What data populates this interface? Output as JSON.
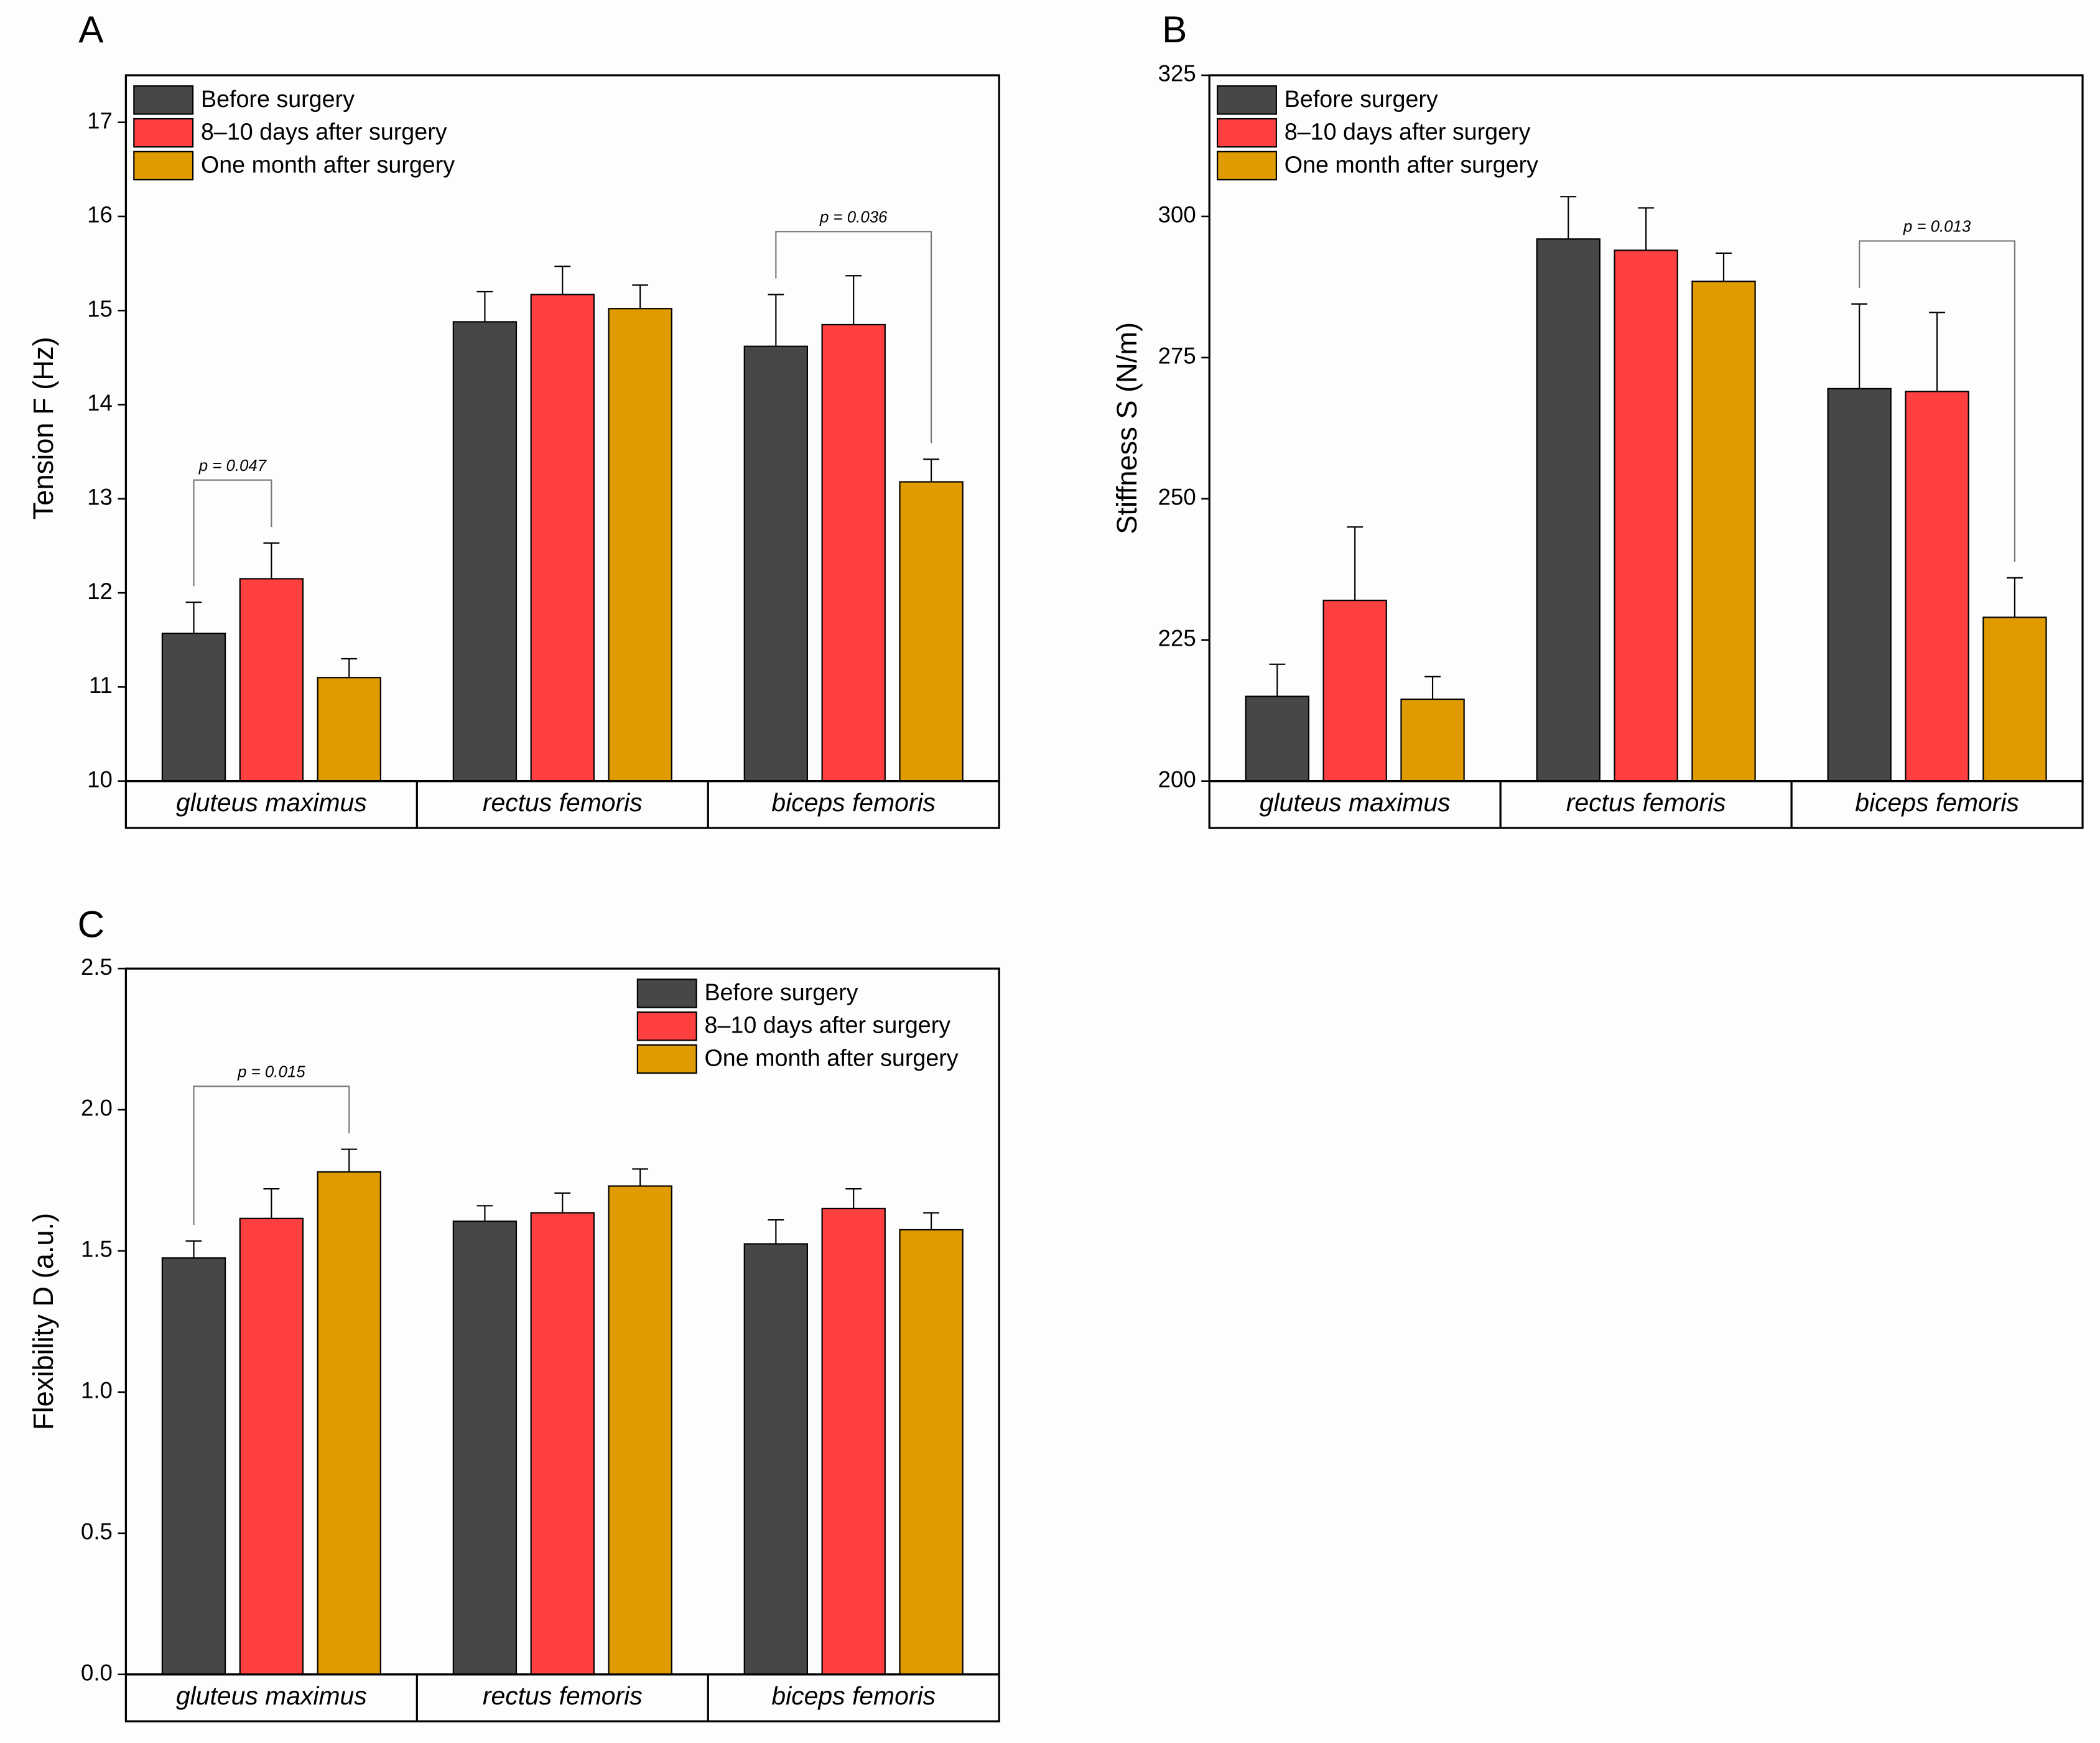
{
  "chart_data": [
    {
      "type": "bar",
      "panel": "A",
      "ylabel": "Tension F (Hz)",
      "categories": [
        "gluteus maximus",
        "rectus femoris",
        "biceps femoris"
      ],
      "series": [
        {
          "name": "Before surgery",
          "color": "#474747",
          "values": [
            11.57,
            14.88,
            14.62
          ],
          "errors": [
            0.33,
            0.32,
            0.55
          ]
        },
        {
          "name": "8–10 days after surgery",
          "color": "#ff4040",
          "values": [
            12.15,
            15.17,
            14.85
          ],
          "errors": [
            0.38,
            0.3,
            0.52
          ]
        },
        {
          "name": "One month after surgery",
          "color": "#e09b00",
          "values": [
            11.1,
            15.02,
            13.18
          ],
          "errors": [
            0.2,
            0.25,
            0.24
          ]
        }
      ],
      "ylim": [
        10,
        17.5
      ],
      "yticks": [
        10,
        11,
        12,
        13,
        14,
        15,
        16,
        17
      ],
      "legend": "upper left",
      "annotations": [
        {
          "text": "p = 0.047",
          "category": 0,
          "series": [
            0,
            1
          ]
        },
        {
          "text": "p = 0.036",
          "category": 2,
          "series": [
            0,
            2
          ]
        }
      ]
    },
    {
      "type": "bar",
      "panel": "B",
      "ylabel": "Stiffness S (N/m)",
      "categories": [
        "gluteus maximus",
        "rectus femoris",
        "biceps femoris"
      ],
      "series": [
        {
          "name": "Before surgery",
          "color": "#474747",
          "values": [
            215,
            296,
            269.5
          ],
          "errors": [
            5.7,
            7.5,
            15
          ]
        },
        {
          "name": "8–10 days after surgery",
          "color": "#ff4040",
          "values": [
            232,
            294,
            269
          ],
          "errors": [
            13,
            7.5,
            14
          ]
        },
        {
          "name": "One month after surgery",
          "color": "#e09b00",
          "values": [
            214.5,
            288.5,
            229
          ],
          "errors": [
            4,
            5,
            7
          ]
        }
      ],
      "ylim": [
        200,
        325
      ],
      "yticks": [
        200,
        225,
        250,
        275,
        300,
        325
      ],
      "legend": "upper left",
      "annotations": [
        {
          "text": "p = 0.013",
          "category": 2,
          "series": [
            0,
            2
          ]
        }
      ]
    },
    {
      "type": "bar",
      "panel": "C",
      "ylabel": "Flexibility D (a.u.)",
      "categories": [
        "gluteus maximus",
        "rectus femoris",
        "biceps femoris"
      ],
      "series": [
        {
          "name": "Before surgery",
          "color": "#474747",
          "values": [
            1.475,
            1.605,
            1.525
          ],
          "errors": [
            0.06,
            0.055,
            0.085
          ]
        },
        {
          "name": "8–10 days after surgery",
          "color": "#ff4040",
          "values": [
            1.615,
            1.635,
            1.65
          ],
          "errors": [
            0.105,
            0.07,
            0.07
          ]
        },
        {
          "name": "One month after surgery",
          "color": "#e09b00",
          "values": [
            1.78,
            1.73,
            1.575
          ],
          "errors": [
            0.08,
            0.06,
            0.06
          ]
        }
      ],
      "ylim": [
        0,
        2.5
      ],
      "yticks": [
        {
          "value": 0,
          "label": "0.0"
        },
        0.5,
        {
          "value": 1,
          "label": "1.0"
        },
        1.5,
        {
          "value": 2,
          "label": "2.0"
        },
        2.5
      ],
      "legend": "upper right",
      "annotations": [
        {
          "text": "p = 0.015",
          "category": 0,
          "series": [
            0,
            2
          ]
        }
      ]
    }
  ]
}
